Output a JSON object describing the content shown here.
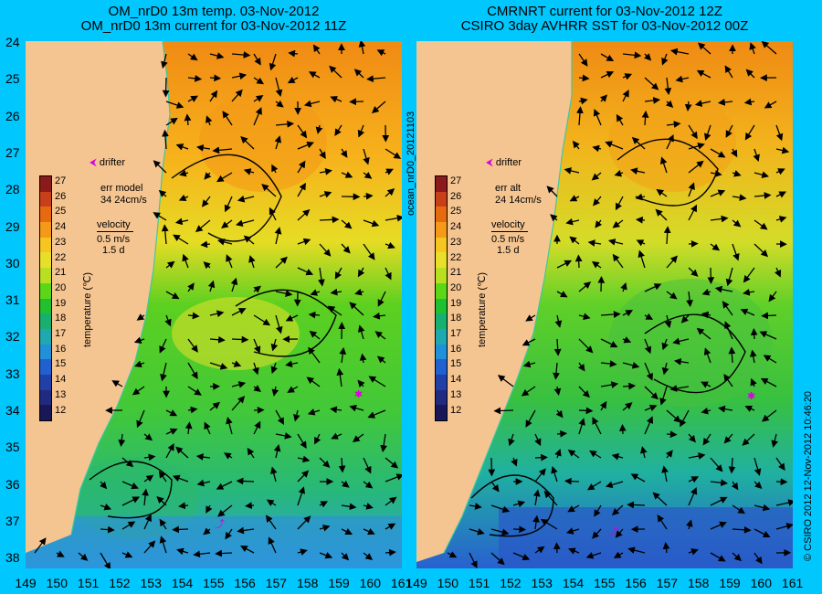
{
  "left_title": [
    "OM_nrD0 13m temp. 03-Nov-2012",
    "OM_nrD0 13m current for 03-Nov-2012 11Z"
  ],
  "right_title": [
    "CMRNRT current for 03-Nov-2012 12Z",
    "CSIRO 3day AVHRR SST for 03-Nov-2012 00Z"
  ],
  "latitudes": [
    "24",
    "25",
    "26",
    "27",
    "28",
    "29",
    "30",
    "31",
    "32",
    "33",
    "34",
    "35",
    "36",
    "37",
    "38"
  ],
  "longitudes": [
    "149",
    "150",
    "151",
    "152",
    "153",
    "154",
    "155",
    "156",
    "157",
    "158",
    "159",
    "160",
    "161",
    "149",
    "150",
    "151",
    "152",
    "153",
    "154",
    "155",
    "156",
    "157",
    "158",
    "159",
    "160",
    "161"
  ],
  "left_overlay": {
    "drifter": "drifter",
    "err_label": "err model",
    "err_value": "34 24cm/s",
    "velocity_label": "velocity",
    "vel_scale": "0.5 m/s",
    "vel_days": "1.5 d"
  },
  "right_overlay": {
    "drifter": "drifter",
    "err_label": "err alt",
    "err_value": "24 14cm/s",
    "velocity_label": "velocity",
    "vel_scale": "0.5 m/s",
    "vel_days": "1.5 d"
  },
  "colorbar": {
    "labels": [
      "27",
      "26",
      "25",
      "24",
      "23",
      "22",
      "21",
      "20",
      "19",
      "18",
      "17",
      "16",
      "15",
      "14",
      "13",
      "12"
    ],
    "colors": [
      "#8b1a1a",
      "#c8401a",
      "#e86a10",
      "#f49a18",
      "#f7c520",
      "#e8e028",
      "#b8e020",
      "#5ad818",
      "#20c030",
      "#18b070",
      "#20a8b0",
      "#2090d8",
      "#2060d0",
      "#2040a8",
      "#202a80",
      "#181858"
    ],
    "unit": "temperature (℃)"
  },
  "side_left": "ocean_nrD0_20121103",
  "side_right": "© CSIRO 2012   12-Nov-2012 10:46:20"
}
